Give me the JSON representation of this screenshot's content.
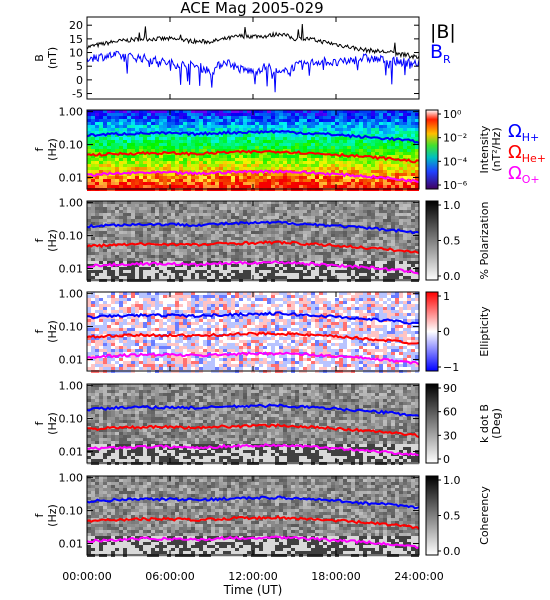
{
  "figure": {
    "title": "ACE Mag 2005-029",
    "xlabel": "Time (UT)",
    "xticks": [
      "00:00:00",
      "06:00:00",
      "12:00:00",
      "18:00:00",
      "24:00:00"
    ]
  },
  "colors": {
    "total_field": "#000000",
    "br": "#0000ff",
    "h_plus": "#0000ff",
    "he_plus": "#ff0000",
    "o_plus": "#ff00ff"
  },
  "chart_data": [
    {
      "type": "line",
      "panel": "magnetic-field",
      "ylabel": [
        "B",
        "(nT)"
      ],
      "yticks": [
        "20",
        "15",
        "10",
        "5",
        "0",
        "-5"
      ],
      "ylim": [
        -7,
        23
      ],
      "x_hours": [
        0,
        2,
        4,
        6,
        8,
        9,
        10,
        11,
        12,
        13,
        14,
        15,
        16,
        17,
        18,
        20,
        22,
        24
      ],
      "series": [
        {
          "name": "|B|",
          "values": [
            12,
            14,
            15,
            15,
            14,
            14,
            15,
            16,
            16,
            16,
            17,
            15,
            15,
            14,
            13,
            11,
            10,
            8
          ]
        },
        {
          "name": "BR",
          "values": [
            8,
            9,
            8,
            6,
            5,
            3,
            7,
            4,
            3,
            5,
            2,
            5,
            6,
            7,
            6,
            8,
            7,
            6
          ]
        }
      ]
    },
    {
      "type": "heatmap",
      "panel": "power-spectrum",
      "ylabel": [
        "f",
        "(Hz)"
      ],
      "yticks": [
        "1.00",
        "0.10",
        "0.01"
      ],
      "colorbar": {
        "label": [
          "Intensity",
          "(nT²/Hz)"
        ],
        "ticks": [
          "10⁰",
          "10⁻²",
          "10⁻⁴",
          "10⁻⁶"
        ]
      }
    },
    {
      "type": "heatmap",
      "panel": "polarization",
      "ylabel": [
        "f",
        "(Hz)"
      ],
      "yticks": [
        "1.00",
        "0.10",
        "0.01"
      ],
      "colorbar": {
        "label": [
          "% Polarization"
        ],
        "ticks": [
          "1.0",
          "0.5",
          "0.0"
        ]
      }
    },
    {
      "type": "heatmap",
      "panel": "ellipticity",
      "ylabel": [
        "f",
        "(Hz)"
      ],
      "yticks": [
        "1.00",
        "0.10",
        "0.01"
      ],
      "colorbar": {
        "label": [
          "Ellipticity"
        ],
        "ticks": [
          "1",
          "0",
          "−1"
        ]
      }
    },
    {
      "type": "heatmap",
      "panel": "k-dot-b",
      "ylabel": [
        "f",
        "(Hz)"
      ],
      "yticks": [
        "1.00",
        "0.10",
        "0.01"
      ],
      "colorbar": {
        "label": [
          "k dot B",
          "(Deg)"
        ],
        "ticks": [
          "90",
          "60",
          "30",
          "0"
        ]
      }
    },
    {
      "type": "heatmap",
      "panel": "coherency",
      "ylabel": [
        "f",
        "(Hz)"
      ],
      "yticks": [
        "1.00",
        "0.10",
        "0.01"
      ],
      "colorbar": {
        "label": [
          "Coherency"
        ],
        "ticks": [
          "1.0",
          "0.5",
          "0.0"
        ]
      }
    }
  ],
  "gyrofrequency_lines": {
    "x_hours": [
      0,
      2,
      4,
      6,
      8,
      10,
      12,
      14,
      16,
      18,
      20,
      22,
      24
    ],
    "h_plus_hz": [
      0.19,
      0.21,
      0.22,
      0.22,
      0.21,
      0.23,
      0.24,
      0.25,
      0.22,
      0.2,
      0.17,
      0.15,
      0.12
    ],
    "he_plus_hz": [
      0.048,
      0.052,
      0.055,
      0.055,
      0.052,
      0.058,
      0.06,
      0.062,
      0.055,
      0.05,
      0.043,
      0.037,
      0.03
    ],
    "o_plus_hz": [
      0.012,
      0.013,
      0.014,
      0.014,
      0.013,
      0.0145,
      0.015,
      0.0155,
      0.014,
      0.0125,
      0.011,
      0.0093,
      0.0075
    ]
  },
  "legend": {
    "b_total": "|B|",
    "b_r": "B",
    "b_r_sub": "R",
    "h_plus": "Ω",
    "h_plus_sub": "H+",
    "he_plus": "Ω",
    "he_plus_sub": "He+",
    "o_plus": "Ω",
    "o_plus_sub": "O+"
  }
}
